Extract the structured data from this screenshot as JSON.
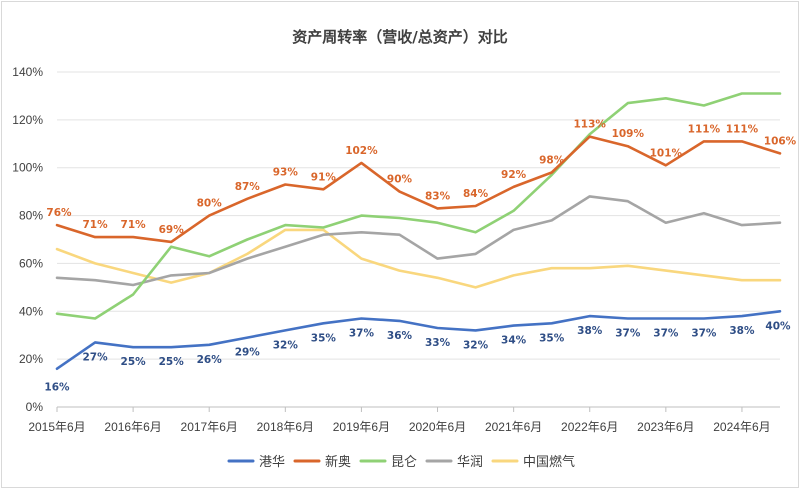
{
  "chart_data": {
    "type": "line",
    "title": "资产周转率（营收/总资产）对比",
    "ylim": [
      0,
      140
    ],
    "y_ticks": [
      "0%",
      "20%",
      "40%",
      "60%",
      "80%",
      "100%",
      "120%",
      "140%"
    ],
    "x_tick_labels": [
      "2015年6月",
      "2016年6月",
      "2017年6月",
      "2018年6月",
      "2019年6月",
      "2020年6月",
      "2021年6月",
      "2022年6月",
      "2023年6月",
      "2024年6月"
    ],
    "x": [
      "2015-06",
      "2015-12",
      "2016-06",
      "2016-12",
      "2017-06",
      "2017-12",
      "2018-06",
      "2018-12",
      "2019-06",
      "2019-12",
      "2020-06",
      "2020-12",
      "2021-06",
      "2021-12",
      "2022-06",
      "2022-12",
      "2023-06",
      "2023-12",
      "2024-06",
      "2024-12"
    ],
    "grid": true,
    "legend_position": "bottom",
    "series": [
      {
        "name": "港华",
        "color": "#4472C4",
        "values": [
          16,
          27,
          25,
          25,
          26,
          29,
          32,
          35,
          37,
          36,
          33,
          32,
          34,
          35,
          38,
          37,
          37,
          37,
          38,
          40
        ],
        "labels": [
          "16%",
          "27%",
          "25%",
          "25%",
          "26%",
          "29%",
          "32%",
          "35%",
          "37%",
          "36%",
          "33%",
          "32%",
          "34%",
          "35%",
          "38%",
          "37%",
          "37%",
          "37%",
          "38%",
          "40%"
        ]
      },
      {
        "name": "新奥",
        "color": "#D9662B",
        "values": [
          76,
          71,
          71,
          69,
          80,
          87,
          93,
          91,
          102,
          90,
          83,
          84,
          92,
          98,
          113,
          109,
          101,
          111,
          111,
          106
        ],
        "labels": [
          "76%",
          "71%",
          "71%",
          "69%",
          "80%",
          "87%",
          "93%",
          "91%",
          "102%",
          "90%",
          "83%",
          "84%",
          "92%",
          "98%",
          "113%",
          "109%",
          "101%",
          "111%",
          "111%",
          "106%"
        ]
      },
      {
        "name": "昆仑",
        "color": "#8FD175",
        "values": [
          39,
          37,
          47,
          67,
          63,
          70,
          76,
          75,
          80,
          79,
          77,
          73,
          82,
          97,
          114,
          127,
          129,
          126,
          131,
          131
        ]
      },
      {
        "name": "华润",
        "color": "#A5A5A5",
        "values": [
          54,
          53,
          51,
          55,
          56,
          62,
          67,
          72,
          73,
          72,
          62,
          64,
          74,
          78,
          88,
          86,
          77,
          81,
          76,
          77
        ]
      },
      {
        "name": "中国燃气",
        "color": "#F9D77E",
        "values": [
          66,
          60,
          56,
          52,
          56,
          64,
          74,
          74,
          62,
          57,
          54,
          50,
          55,
          58,
          58,
          59,
          57,
          55,
          53,
          53
        ]
      }
    ]
  }
}
